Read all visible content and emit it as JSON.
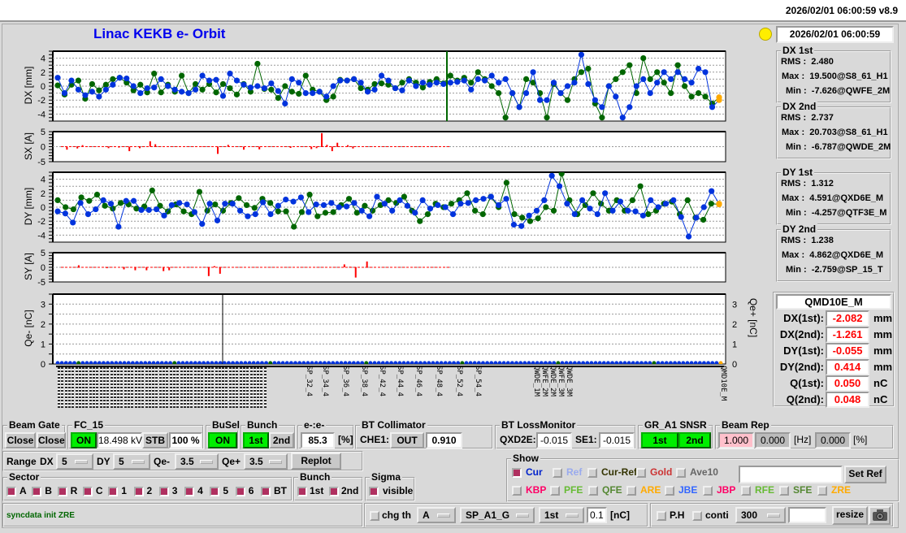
{
  "header": {
    "timestamp_version": "2026/02/01 06:00:59   v8.9"
  },
  "title": "Linac KEKB e- Orbit",
  "status_light_color": "#ffee00",
  "timestamp": "2026/02/01 06:00:59",
  "stats": [
    {
      "title": "DX 1st",
      "rms_label": "RMS :",
      "rms": "2.480",
      "max_label": "Max :",
      "max": "19.500@S8_61_H1",
      "min_label": "Min :",
      "min": "-7.626@QWFE_2M"
    },
    {
      "title": "DX 2nd",
      "rms_label": "RMS :",
      "rms": "2.737",
      "max_label": "Max :",
      "max": "20.703@S8_61_H1",
      "min_label": "Min :",
      "min": "-6.787@QWDE_2M"
    },
    {
      "title": "DY 1st",
      "rms_label": "RMS :",
      "rms": "1.312",
      "max_label": "Max :",
      "max": "4.591@QXD6E_M",
      "min_label": "Min :",
      "min": "-4.257@QTF3E_M"
    },
    {
      "title": "DY 2nd",
      "rms_label": "RMS :",
      "rms": "1.238",
      "max_label": "Max :",
      "max": "4.862@QXD6E_M",
      "min_label": "Min :",
      "min": "-2.759@SP_15_T"
    }
  ],
  "monitor": {
    "name": "QMD10E_M",
    "rows": [
      {
        "label": "DX(1st):",
        "value": "-2.082",
        "unit": "mm"
      },
      {
        "label": "DX(2nd):",
        "value": "-1.261",
        "unit": "mm"
      },
      {
        "label": "DY(1st):",
        "value": "-0.055",
        "unit": "mm"
      },
      {
        "label": "DY(2nd):",
        "value": "0.414",
        "unit": "mm"
      },
      {
        "label": "Q(1st):",
        "value": "0.050",
        "unit": "nC"
      },
      {
        "label": "Q(2nd):",
        "value": "0.048",
        "unit": "nC"
      }
    ]
  },
  "colors": {
    "first": "#0033dd",
    "second": "#006600",
    "steer": "#ff0000",
    "last_point": "#ffaa00"
  },
  "plots": {
    "dx": {
      "ylabel": "DX [mm]",
      "ylim": [
        -5,
        5
      ],
      "ticks": [
        "4",
        "2",
        "0",
        "-2",
        "-4"
      ],
      "first": [
        1.2,
        -1,
        0.8,
        -0.5,
        -1.3,
        -0.8,
        -1.5,
        -0.5,
        0.2,
        1.2,
        1.1,
        0,
        -1,
        -0.3,
        -0.2,
        1,
        0,
        -0.5,
        -0.8,
        -1,
        -0.5,
        1.5,
        0.8,
        0.9,
        -1.4,
        1.8,
        0.8,
        0.2,
        -0.2,
        0,
        -0.3,
        0.4,
        -0.7,
        -2.5,
        1,
        0.5,
        -1,
        -1,
        -0.8,
        -1.5,
        0,
        0.8,
        0.8,
        1,
        0.5,
        -0.8,
        -0.5,
        1.5,
        0.8,
        -0.3,
        -0.6,
        0.8,
        0,
        0.5,
        0.2,
        0.5,
        0.3,
        0.5,
        0.6,
        0.8,
        -0.5,
        1,
        0.8,
        1.5,
        0.5,
        1,
        -1,
        -3,
        -1,
        2,
        -2,
        -2,
        0.5,
        -1,
        0,
        0.5,
        4.5,
        0.3,
        -2,
        -3,
        0,
        -1.5,
        -4.5,
        -3,
        0,
        1,
        -1,
        0.5,
        2,
        1,
        2,
        1,
        0.5,
        2.5,
        2,
        -3,
        -2
      ],
      "second": [
        0.1,
        -1.2,
        0.2,
        0.8,
        -1.8,
        0.3,
        -0.6,
        0.2,
        1,
        1.2,
        0.5,
        -0.6,
        0.2,
        -0.9,
        1.8,
        -0.9,
        0.2,
        -0.8,
        1.5,
        -1,
        0.3,
        -0.5,
        0.3,
        -0.9,
        0.3,
        -0.3,
        -1.2,
        0.3,
        -0.8,
        3.2,
        -0.4,
        -0.5,
        -1.7,
        0,
        -0.8,
        -1.1,
        1.5,
        -0.5,
        -0.8,
        -2,
        -1.5,
        0.9,
        0.8,
        1,
        -0.3,
        -0.5,
        0.3,
        0.4,
        0.2,
        -0.3,
        0.5,
        1,
        0.5,
        -0.2,
        0.6,
        1,
        0.4,
        1.5,
        0.8,
        1.2,
        0.5,
        2,
        1,
        0,
        -1,
        -4.5,
        -1,
        -3,
        1,
        0.5,
        -1,
        -4.5,
        0.3,
        -1,
        -2,
        1,
        2,
        2.5,
        -2.5,
        -4.5,
        0,
        1,
        2,
        3,
        -1,
        4,
        1,
        2,
        0.5,
        -1,
        3,
        0,
        -1.5,
        -1,
        -1.5,
        -2.5,
        -1.6
      ]
    },
    "sx": {
      "ylabel": "SX [A]",
      "ylim": [
        -5,
        5
      ],
      "ticks": [
        "5",
        "0",
        "-5"
      ],
      "values": [
        0,
        -1,
        0,
        -0.6,
        0.5,
        0,
        0,
        0,
        0,
        -0.5,
        0,
        -0.3,
        0,
        -1.5,
        0,
        -0.5,
        0,
        1.8,
        0.8,
        0,
        0,
        0,
        0,
        0,
        0,
        0,
        0,
        -0.1,
        0,
        0,
        -2.4,
        0,
        0.6,
        0,
        0,
        -1,
        0,
        0,
        -0.9,
        0,
        0,
        0,
        0,
        0,
        -0.4,
        0,
        0,
        0,
        -0.8,
        -0.5,
        4.5,
        0.6,
        -1.5,
        1.3,
        0,
        0.5,
        -0.6,
        0,
        0,
        0,
        0,
        0,
        0,
        0,
        0,
        0,
        0,
        0,
        0,
        0,
        0,
        0,
        0,
        0,
        0
      ]
    },
    "dy": {
      "ylabel": "DY [mm]",
      "ylim": [
        -5,
        5
      ],
      "ticks": [
        "4",
        "2",
        "0",
        "-2",
        "-4"
      ],
      "first": [
        -0.6,
        -0.9,
        -2.2,
        0.6,
        -1,
        -0.3,
        1,
        0.5,
        -2.8,
        0.9,
        0.9,
        -0.4,
        -0.4,
        -0.3,
        -1.2,
        0.3,
        0.6,
        0.4,
        -0.7,
        -2.4,
        0.5,
        -1.9,
        0.5,
        0.5,
        -0.5,
        -1.3,
        -1,
        0.7,
        -1,
        0.2,
        1.1,
        0.8,
        1.4,
        -0.7,
        0.4,
        0.3,
        0.6,
        0,
        0.1,
        0.6,
        -0.5,
        -1.3,
        1.5,
        0.5,
        -0.5,
        1,
        0.2,
        -0.8,
        1,
        -0.2,
        0.3,
        0,
        -1,
        0.5,
        0.6,
        1,
        1.2,
        1.5,
        0.3,
        1.2,
        -2.5,
        -2.7,
        -1.2,
        -0.5,
        1,
        4.5,
        3,
        0.5,
        -1,
        1,
        -0.2,
        -1,
        2,
        -0.5,
        0.8,
        -0.5,
        -0.6,
        -1.2,
        1,
        0,
        0.5,
        1,
        -1.4,
        -4.2,
        -1.5,
        0,
        2.3,
        0.5
      ],
      "second": [
        1,
        0,
        -0.3,
        1.4,
        0.9,
        1.8,
        0.2,
        -0.2,
        0.6,
        0.4,
        -0.2,
        0.1,
        2.4,
        0.2,
        -0.6,
        0.4,
        -0.6,
        -1,
        2.2,
        -0.5,
        0.4,
        -0.5,
        0.6,
        1.3,
        0.3,
        -0.1,
        1.2,
        0.6,
        -0.6,
        -0.6,
        -2.8,
        -0.7,
        1.8,
        -1.3,
        -0.8,
        -0.7,
        0.3,
        1.2,
        -0.8,
        0.2,
        -0.5,
        0.3,
        1,
        0.6,
        1.5,
        -0.5,
        -2,
        -1,
        0.5,
        0,
        0.5,
        1,
        2,
        -0.5,
        -1,
        1.5,
        0,
        3.5,
        -1,
        -1.5,
        -2,
        -1.6,
        0,
        -0.5,
        4.8,
        1,
        -1,
        0.3,
        2,
        0.5,
        -0.5,
        1,
        -0.5,
        1,
        3,
        -1,
        -0.5,
        0.5,
        0.8,
        -1,
        1,
        -1.5,
        -1.8,
        0.5,
        0.4
      ]
    },
    "sy": {
      "ylabel": "SY [A]",
      "ylim": [
        -5,
        5
      ],
      "ticks": [
        "5",
        "0",
        "-5"
      ],
      "values": [
        0,
        0,
        0,
        0.7,
        0,
        0,
        0,
        0,
        -0.3,
        0,
        0,
        -0.7,
        0,
        -1,
        0,
        -1,
        0,
        0,
        -1.3,
        -1,
        0,
        0,
        0,
        0,
        0,
        0,
        -3,
        0.4,
        -2.2,
        0,
        0,
        0,
        0,
        0,
        0,
        0,
        0,
        0,
        0,
        0,
        0,
        0,
        0,
        0,
        0,
        0,
        0,
        0,
        0,
        0,
        1,
        0.2,
        -3.5,
        0,
        2,
        0,
        0,
        0,
        0,
        0,
        0,
        0,
        0,
        0,
        0,
        0,
        0,
        0,
        0
      ]
    },
    "q": {
      "ylabel_left": "Qe- [nC]",
      "ylabel_right": "Qe+ [nC]",
      "ylim": [
        0,
        3.5
      ],
      "ticks": [
        "3",
        "2",
        "1",
        "0"
      ],
      "spike_value": 3.5,
      "baseline": 0.05
    }
  },
  "x_labels": [
    "SP_32_4",
    "SP_34_4",
    "SP_36_4",
    "SP_38_4",
    "SP_42_4",
    "SP_44_4",
    "SP_46_4",
    "SP_48_4",
    "SP_52_4",
    "SP_54_4",
    "QWDE_1M",
    "QWFE_2M",
    "QWDE_2M",
    "QWFE_3M",
    "QWDE_3M",
    "QMD10E_M"
  ],
  "controls": {
    "beam_gate": {
      "title": "Beam Gate",
      "b1": "Close",
      "b2": "Close"
    },
    "fc15": {
      "title": "FC_15",
      "on": "ON",
      "kv": "18.498 kV",
      "stb": "STB",
      "pct": "100 %"
    },
    "busel": {
      "title": "BuSel",
      "on": "ON"
    },
    "bunch": {
      "title": "Bunch",
      "first": "1st",
      "second": "2nd"
    },
    "ee": {
      "title": "e-:e-",
      "value": "85.3",
      "unit": "[%]"
    },
    "bt_coll": {
      "title": "BT Collimator",
      "label": "CHE1:",
      "state": "OUT",
      "value": "0.910"
    },
    "bt_loss": {
      "title": "BT LossMonitor",
      "l1": "QXD2E:",
      "v1": "-0.015",
      "l2": "SE1:",
      "v2": "-0.015"
    },
    "gr": {
      "title": "GR_A1  SNSR",
      "first": "1st",
      "second": "2nd"
    },
    "beam_rep": {
      "title": "Beam Rep",
      "v1": "1.000",
      "v2": "0.000",
      "u1": "[Hz]",
      "v3": "0.000",
      "u2": "[%]"
    },
    "range": {
      "label": "Range",
      "dx": "DX",
      "dx_val": "5",
      "dy": "DY",
      "dy_val": "5",
      "qm": "Qe-",
      "qm_val": "3.5",
      "qp": "Qe+",
      "qp_val": "3.5",
      "replot": "Replot"
    },
    "sector": {
      "title": "Sector",
      "items": [
        {
          "l": "A",
          "on": true
        },
        {
          "l": "B",
          "on": true
        },
        {
          "l": "R",
          "on": true
        },
        {
          "l": "C",
          "on": true
        },
        {
          "l": "1",
          "on": true
        },
        {
          "l": "2",
          "on": true
        },
        {
          "l": "3",
          "on": true
        },
        {
          "l": "4",
          "on": true
        },
        {
          "l": "5",
          "on": true
        },
        {
          "l": "6",
          "on": true
        },
        {
          "l": "BT",
          "on": true
        }
      ]
    },
    "bunch2": {
      "title": "Bunch",
      "first": "1st",
      "second": "2nd"
    },
    "sigma": {
      "title": "Sigma",
      "visible": "visible"
    },
    "show": {
      "title": "Show",
      "row1": [
        {
          "l": "Cur",
          "c": "#0022cc",
          "on": true
        },
        {
          "l": "Ref",
          "c": "#99aaee",
          "on": false
        },
        {
          "l": "Cur-Ref",
          "c": "#333300",
          "on": false
        },
        {
          "l": "Gold",
          "c": "#cc3333",
          "on": false
        },
        {
          "l": "Ave10",
          "c": "#666666",
          "on": false
        }
      ],
      "row2": [
        {
          "l": "KBP",
          "c": "#ff0066"
        },
        {
          "l": "PFE",
          "c": "#66bb33"
        },
        {
          "l": "QFE",
          "c": "#558833"
        },
        {
          "l": "ARE",
          "c": "#ffaa00"
        },
        {
          "l": "JBE",
          "c": "#3366ff"
        },
        {
          "l": "JBP",
          "c": "#ff0066"
        },
        {
          "l": "RFE",
          "c": "#66bb33"
        },
        {
          "l": "SFE",
          "c": "#558833"
        },
        {
          "l": "ZRE",
          "c": "#ffaa00"
        }
      ],
      "ref_input": "",
      "set_ref": "Set Ref"
    },
    "status": "syncdata init ZRE",
    "chg": {
      "label": "chg th",
      "sel": "A",
      "monitor": "SP_A1_G",
      "bunch": "1st",
      "value": "0.1",
      "unit": "[nC]"
    },
    "ph": {
      "label": "P.H",
      "conti": "conti",
      "count": "300",
      "input": "",
      "resize": "resize"
    }
  }
}
